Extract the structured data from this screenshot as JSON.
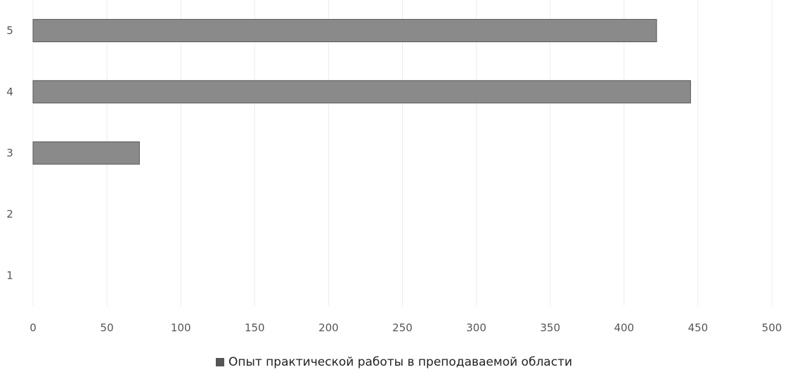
{
  "chart_data": {
    "type": "bar",
    "orientation": "horizontal",
    "categories": [
      "1",
      "2",
      "3",
      "4",
      "5"
    ],
    "series": [
      {
        "name": "Опыт практической работы в преподаваемой области",
        "values": [
          0,
          0,
          72,
          445,
          422
        ],
        "color": "#8a8a8a"
      }
    ],
    "xlim": [
      0,
      500
    ],
    "xticks": [
      "0",
      "50",
      "100",
      "150",
      "200",
      "250",
      "300",
      "350",
      "400",
      "450",
      "500"
    ],
    "title": "",
    "xlabel": "",
    "ylabel": "",
    "grid": true,
    "legend_position": "bottom"
  }
}
